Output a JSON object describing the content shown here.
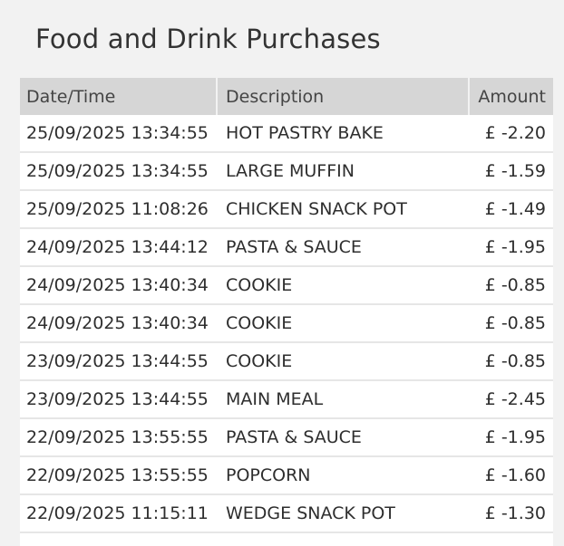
{
  "page": {
    "title": "Food and Drink Purchases"
  },
  "table": {
    "headers": {
      "datetime": "Date/Time",
      "description": "Description",
      "amount": "Amount"
    },
    "rows": [
      {
        "datetime": "25/09/2025 13:34:55",
        "description": "HOT PASTRY BAKE",
        "amount": "£ -2.20"
      },
      {
        "datetime": "25/09/2025 13:34:55",
        "description": "LARGE MUFFIN",
        "amount": "£ -1.59"
      },
      {
        "datetime": "25/09/2025 11:08:26",
        "description": "CHICKEN SNACK POT",
        "amount": "£ -1.49"
      },
      {
        "datetime": "24/09/2025 13:44:12",
        "description": "PASTA & SAUCE",
        "amount": "£ -1.95"
      },
      {
        "datetime": "24/09/2025 13:40:34",
        "description": "COOKIE",
        "amount": "£ -0.85"
      },
      {
        "datetime": "24/09/2025 13:40:34",
        "description": "COOKIE",
        "amount": "£ -0.85"
      },
      {
        "datetime": "23/09/2025 13:44:55",
        "description": "COOKIE",
        "amount": "£ -0.85"
      },
      {
        "datetime": "23/09/2025 13:44:55",
        "description": "MAIN MEAL",
        "amount": "£ -2.45"
      },
      {
        "datetime": "22/09/2025 13:55:55",
        "description": "PASTA & SAUCE",
        "amount": "£ -1.95"
      },
      {
        "datetime": "22/09/2025 13:55:55",
        "description": "POPCORN",
        "amount": "£ -1.60"
      },
      {
        "datetime": "22/09/2025 11:15:11",
        "description": "WEDGE SNACK POT",
        "amount": "£ -1.30"
      }
    ]
  },
  "colors": {
    "background": "#f2f2f2",
    "header_bg": "#d6d6d6",
    "row_bg": "#ffffff",
    "row_divider": "#e6e6e6"
  }
}
